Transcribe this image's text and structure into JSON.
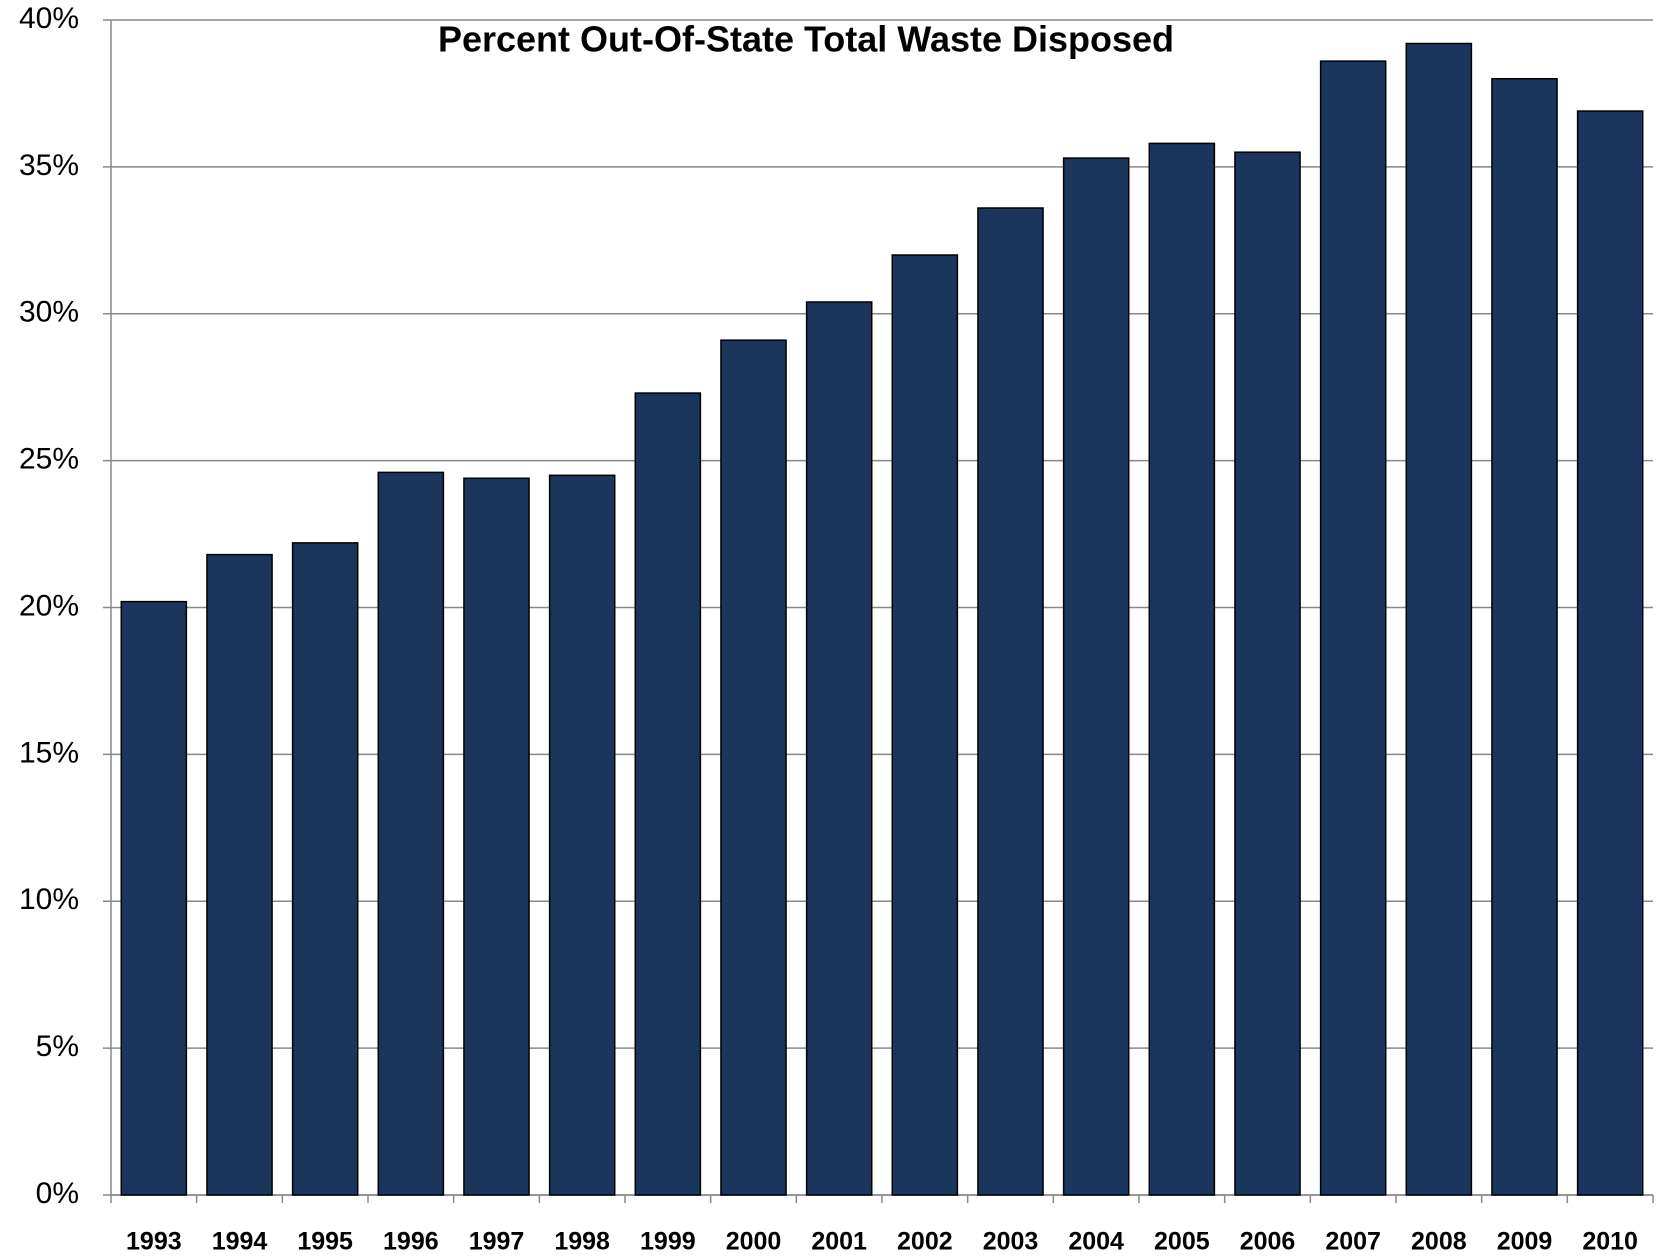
{
  "chart_data": {
    "type": "bar",
    "title": "Percent Out-Of-State Total Waste Disposed",
    "categories": [
      "1993",
      "1994",
      "1995",
      "1996",
      "1997",
      "1998",
      "1999",
      "2000",
      "2001",
      "2002",
      "2003",
      "2004",
      "2005",
      "2006",
      "2007",
      "2008",
      "2009",
      "2010"
    ],
    "values": [
      20.2,
      21.8,
      22.2,
      24.6,
      24.4,
      24.5,
      27.3,
      29.1,
      30.4,
      32.0,
      33.6,
      35.3,
      35.8,
      35.5,
      38.6,
      39.2,
      38.0,
      36.9
    ],
    "color": "#1a365d",
    "ylim": [
      0,
      40
    ],
    "yticks": [
      {
        "value": 0,
        "label": "0%"
      },
      {
        "value": 5,
        "label": "5%"
      },
      {
        "value": 10,
        "label": "10%"
      },
      {
        "value": 15,
        "label": "15%"
      },
      {
        "value": 20,
        "label": "20%"
      },
      {
        "value": 25,
        "label": "25%"
      },
      {
        "value": 30,
        "label": "30%"
      },
      {
        "value": 35,
        "label": "35%"
      },
      {
        "value": 40,
        "label": "40%"
      }
    ],
    "grid": true
  }
}
